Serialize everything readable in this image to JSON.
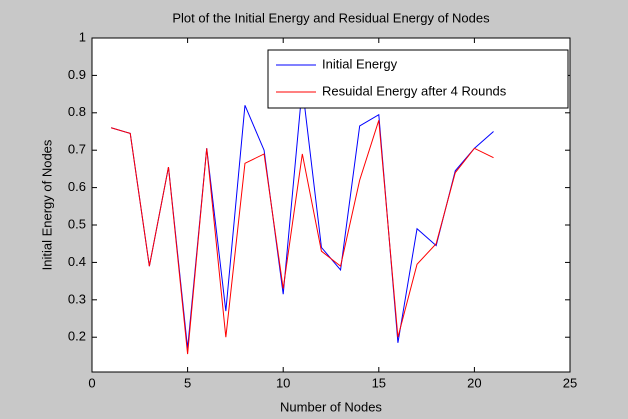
{
  "chart_data": {
    "type": "line",
    "title": "Plot of the Initial Energy and Residual Energy of Nodes",
    "x_label": "Number of Nodes",
    "y_label": "Initial Energy of Nodes",
    "x": [
      1,
      2,
      3,
      4,
      5,
      6,
      7,
      8,
      9,
      10,
      11,
      12,
      13,
      14,
      15,
      16,
      17,
      18,
      19,
      20,
      21
    ],
    "series": [
      {
        "name": "Initial Energy",
        "color": "#0000ff",
        "values": [
          0.76,
          0.745,
          0.39,
          0.655,
          0.17,
          0.705,
          0.27,
          0.82,
          0.7,
          0.315,
          0.87,
          0.44,
          0.38,
          0.765,
          0.795,
          0.185,
          0.49,
          0.445,
          0.645,
          0.705,
          0.75
        ]
      },
      {
        "name": "Resuidal Energy after 4 Rounds",
        "color": "#ff0000",
        "values": [
          0.76,
          0.745,
          0.39,
          0.655,
          0.155,
          0.705,
          0.2,
          0.665,
          0.69,
          0.33,
          0.69,
          0.43,
          0.39,
          0.62,
          0.78,
          0.2,
          0.395,
          0.45,
          0.64,
          0.705,
          0.68
        ]
      }
    ],
    "xlim": [
      0,
      25
    ],
    "xticks": [
      0,
      5,
      10,
      15,
      20,
      25
    ],
    "ylim": [
      0.107,
      1
    ],
    "yticks": [
      0.2,
      0.3,
      0.4,
      0.5,
      0.6,
      0.7,
      0.8,
      0.9,
      1
    ],
    "legend": "northeast"
  }
}
